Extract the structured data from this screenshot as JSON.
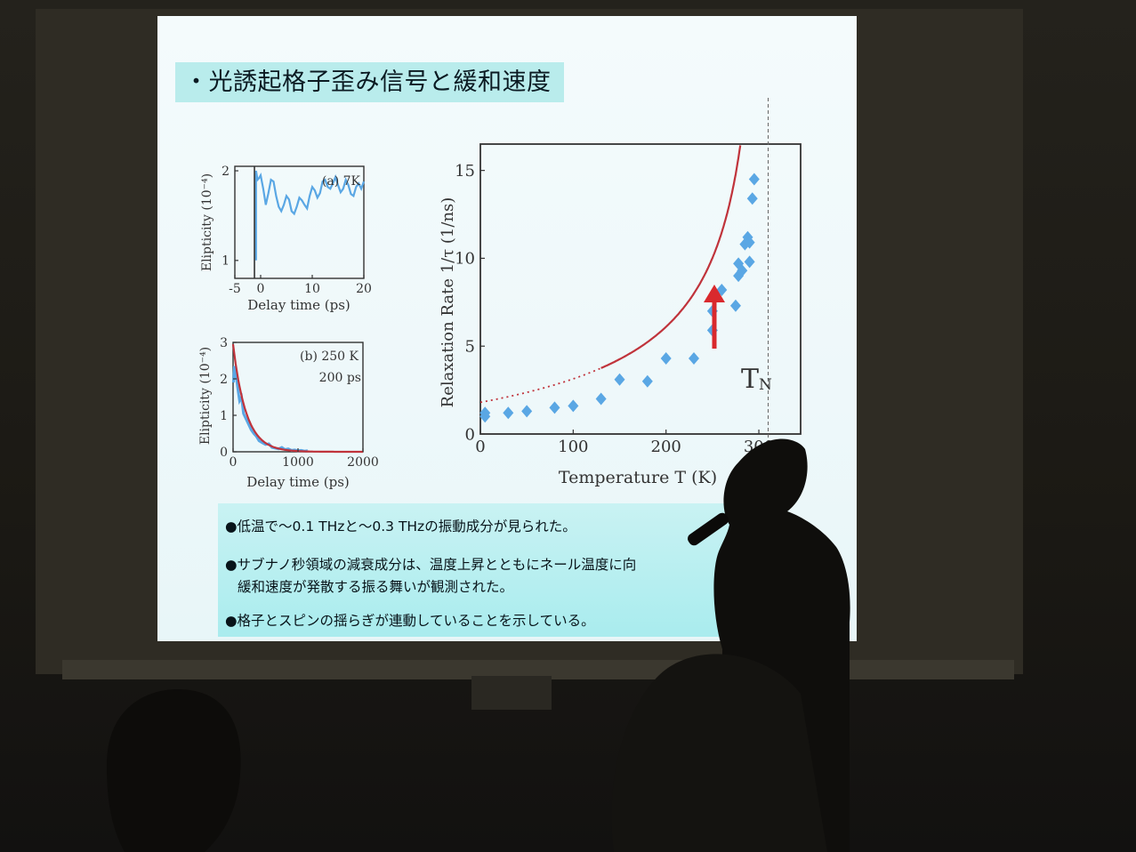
{
  "slide": {
    "title": "・光誘起格子歪み信号と緩和速度",
    "bullets": [
      {
        "text": "●低温で～0.1 THzと～0.3 THzの振動成分が見られた。"
      },
      {
        "text": "●サブナノ秒領域の減衰成分は、温度上昇とともにネール温度に向"
      },
      {
        "text": "緩和速度が発散する振る舞いが観測された。"
      },
      {
        "text": "●格子とスピンの揺らぎが連動していることを示している。"
      }
    ],
    "tn_label": {
      "main": "T",
      "sub": "N"
    }
  },
  "colors": {
    "data_points": "#5aa7e4",
    "fit_curve": "#c0333b",
    "arrow": "#d9292d",
    "title_bar": "#b9ecec",
    "bullet_box": "#aeeef0"
  },
  "chart_data": [
    {
      "type": "line",
      "panel": "(a) 7K",
      "xlabel": "Delay time (ps)",
      "ylabel": "Elipticity (10⁻⁴)",
      "xlim": [
        -5,
        20
      ],
      "ylim": [
        0.8,
        2.05
      ],
      "x_ticks": [
        -5,
        0,
        10,
        20
      ],
      "y_ticks": [
        1,
        2
      ],
      "series": [
        {
          "x": [
            -0.9,
            -0.9,
            -0.6,
            -0.3,
            0,
            0.5,
            1,
            1.5,
            2,
            2.5,
            3,
            3.5,
            4,
            4.5,
            5,
            5.5,
            6,
            6.5,
            7,
            7.5,
            8,
            8.5,
            9,
            9.5,
            10,
            10.5,
            11,
            11.5,
            12,
            12.5,
            13,
            13.5,
            14,
            14.5,
            15,
            15.5,
            16,
            16.5,
            17,
            17.5,
            18,
            18.5,
            19,
            19.5,
            20
          ],
          "y": [
            1.0,
            2.0,
            1.9,
            1.92,
            1.95,
            1.8,
            1.62,
            1.75,
            1.9,
            1.88,
            1.72,
            1.6,
            1.55,
            1.62,
            1.72,
            1.68,
            1.55,
            1.52,
            1.6,
            1.7,
            1.67,
            1.62,
            1.58,
            1.72,
            1.82,
            1.78,
            1.7,
            1.75,
            1.88,
            1.9,
            1.82,
            1.8,
            1.86,
            1.93,
            1.84,
            1.76,
            1.8,
            1.9,
            1.84,
            1.74,
            1.72,
            1.82,
            1.86,
            1.8,
            1.88
          ]
        }
      ]
    },
    {
      "type": "line",
      "panel": "(b) 250 K",
      "annotation": "200 ps",
      "xlabel": "Delay time (ps)",
      "ylabel": "Elipticity (10⁻⁴)",
      "xlim": [
        0,
        2000
      ],
      "ylim": [
        0,
        3
      ],
      "x_ticks": [
        0,
        1000,
        2000
      ],
      "y_ticks": [
        0,
        1,
        2,
        3
      ],
      "series": [
        {
          "x": [
            5,
            20,
            40,
            60,
            80,
            100,
            130,
            160,
            200,
            240,
            280,
            320,
            360,
            400,
            450,
            500,
            550,
            600,
            650,
            700,
            750,
            800,
            850,
            900,
            950,
            1000,
            1050,
            1100,
            1150
          ],
          "y": [
            1.9,
            2.35,
            2.2,
            1.9,
            1.65,
            1.4,
            1.5,
            1.05,
            0.9,
            0.75,
            0.6,
            0.5,
            0.42,
            0.3,
            0.25,
            0.2,
            0.22,
            0.12,
            0.1,
            0.08,
            0.12,
            0.06,
            0.08,
            0.04,
            0.05,
            0.03,
            0.04,
            0.02,
            0.03
          ]
        },
        {
          "fit": "exponential",
          "amplitude": 2.95,
          "tau_ps": 200,
          "x_range": [
            0,
            2000
          ]
        }
      ]
    },
    {
      "type": "scatter",
      "xlabel": "Temperature  T (K)",
      "ylabel": "Relaxation Rate  1/τ  (1/ns)",
      "xlim": [
        0,
        345
      ],
      "ylim": [
        0,
        16.5
      ],
      "x_ticks": [
        0,
        100,
        200,
        300
      ],
      "y_ticks": [
        0,
        5,
        10,
        15
      ],
      "series": [
        {
          "x": [
            5,
            5,
            30,
            50,
            80,
            100,
            130,
            150,
            180,
            200,
            230,
            250,
            250,
            260,
            275,
            278,
            278,
            282,
            285,
            288,
            290,
            290,
            293,
            295
          ],
          "y": [
            1.0,
            1.2,
            1.2,
            1.3,
            1.5,
            1.6,
            2.0,
            3.1,
            3.0,
            4.3,
            4.3,
            5.9,
            7.0,
            8.2,
            7.3,
            9.0,
            9.7,
            9.3,
            10.8,
            11.2,
            9.8,
            10.9,
            13.4,
            14.5
          ]
        }
      ],
      "fit_curve": {
        "critical_temperature": 310,
        "solid_from": 130,
        "dotted_until": 130
      },
      "marker_line_x": 310,
      "marker_label": "TN"
    }
  ]
}
